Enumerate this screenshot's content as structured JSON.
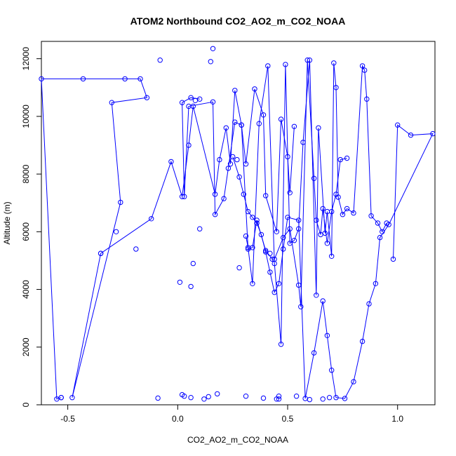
{
  "chart_data": {
    "type": "line",
    "title": "ATOM2 Northbound CO2_AO2_m_CO2_NOAA",
    "xlabel": "CO2_AO2_m_CO2_NOAA",
    "ylabel": "Altitude (m)",
    "xlim": [
      -0.62,
      1.17
    ],
    "ylim": [
      0,
      12600
    ],
    "x_ticks": [
      -0.5,
      0.0,
      0.5,
      1.0
    ],
    "x_tick_labels": [
      "-0.5",
      "0.0",
      "0.5",
      "1.0"
    ],
    "y_ticks": [
      0,
      2000,
      4000,
      6000,
      8000,
      10000,
      12000
    ],
    "y_tick_labels": [
      "0",
      "2000",
      "4000",
      "6000",
      "8000",
      "10000",
      "12000"
    ],
    "series_color": "#0000ff",
    "series": [
      {
        "x": [
          -0.53,
          -0.35,
          -0.28,
          -0.19,
          -0.09,
          -0.08,
          0.01,
          0.02,
          0.03,
          0.06,
          0.06,
          0.07,
          0.08,
          0.1,
          0.12,
          0.14,
          0.15,
          0.16,
          0.18,
          0.27,
          0.28,
          0.31,
          0.39,
          0.42,
          0.45,
          0.46,
          0.46,
          0.54,
          0.6,
          0.66,
          0.69
        ],
        "y": [
          250,
          5250,
          6000,
          5400,
          230,
          11950,
          4250,
          350,
          300,
          250,
          4100,
          4900,
          10550,
          6100,
          200,
          280,
          11900,
          12350,
          380,
          8500,
          4750,
          300,
          230,
          5250,
          200,
          200,
          300,
          300,
          180,
          200,
          250
        ],
        "markers_only": true
      },
      {
        "x": [
          -0.53,
          -0.55,
          -0.62,
          -0.43,
          -0.24,
          -0.17,
          -0.14,
          -0.3,
          -0.26,
          -0.48,
          -0.35,
          -0.12,
          -0.03,
          0.02,
          0.05,
          0.07,
          0.17,
          0.19,
          0.22,
          0.24,
          0.26,
          0.29,
          0.31,
          0.35,
          0.39,
          0.4,
          0.45,
          0.47,
          0.5,
          0.51,
          0.53
        ],
        "y": [
          250,
          200,
          11300,
          11300,
          11300,
          11300,
          10650,
          10480,
          7020,
          250,
          5250,
          6450,
          8430,
          7220,
          9000,
          10350,
          7300,
          8500,
          9600,
          8350,
          10900,
          9700,
          8350,
          10950,
          10050,
          7250,
          6000,
          9900,
          8600,
          7350,
          9650
        ]
      },
      {
        "x": [
          0.1,
          0.06,
          0.02,
          0.03,
          0.05,
          0.16,
          0.17,
          0.21,
          0.23,
          0.26,
          0.29,
          0.32,
          0.34,
          0.36,
          0.4,
          0.43,
          0.44,
          0.48,
          0.51,
          0.55,
          0.56,
          0.59,
          0.62,
          0.63,
          0.65,
          0.66,
          0.68,
          0.7,
          0.72,
          0.74,
          0.77
        ],
        "y": [
          10600,
          10650,
          10480,
          7220,
          10350,
          10500,
          6600,
          7150,
          8200,
          9800,
          9700,
          5400,
          5450,
          6400,
          5350,
          5050,
          5050,
          5800,
          6100,
          4150,
          3400,
          11950,
          7850,
          6400,
          5900,
          6800,
          5600,
          6700,
          7300,
          8500,
          8550
        ]
      },
      {
        "x": [
          0.31,
          0.32,
          0.34,
          0.37,
          0.41,
          0.44,
          0.47,
          0.49,
          0.51,
          0.53,
          0.55,
          0.57,
          0.6,
          0.63,
          0.64,
          0.67,
          0.68,
          0.7,
          0.71,
          0.72,
          0.73,
          0.75,
          0.77,
          0.8,
          0.84,
          0.85,
          0.86,
          0.88,
          0.91,
          0.93,
          0.95
        ],
        "y": [
          5850,
          5450,
          4200,
          9750,
          11750,
          4900,
          2100,
          11800,
          5600,
          5700,
          6100,
          9100,
          11950,
          3800,
          9600,
          5950,
          6700,
          5150,
          11850,
          11000,
          7200,
          6600,
          6800,
          6650,
          11750,
          11600,
          10600,
          6550,
          6300,
          6000,
          6300
        ]
      },
      {
        "x": [
          0.98,
          1.0,
          1.06,
          1.16,
          0.96,
          0.92,
          0.9,
          0.87,
          0.84,
          0.8,
          0.76,
          0.72,
          0.7,
          0.68,
          0.66,
          0.62,
          0.58,
          0.55,
          0.5,
          0.48,
          0.46,
          0.44,
          0.42,
          0.4,
          0.38,
          0.36,
          0.34,
          0.32,
          0.3,
          0.28,
          0.25
        ],
        "y": [
          5050,
          9700,
          9350,
          9400,
          6250,
          5800,
          4200,
          3500,
          2200,
          800,
          220,
          250,
          1200,
          2400,
          3600,
          1800,
          220,
          6400,
          6500,
          5400,
          4200,
          3900,
          4600,
          5300,
          5900,
          6300,
          6500,
          6700,
          7300,
          7900,
          8600
        ]
      }
    ]
  }
}
